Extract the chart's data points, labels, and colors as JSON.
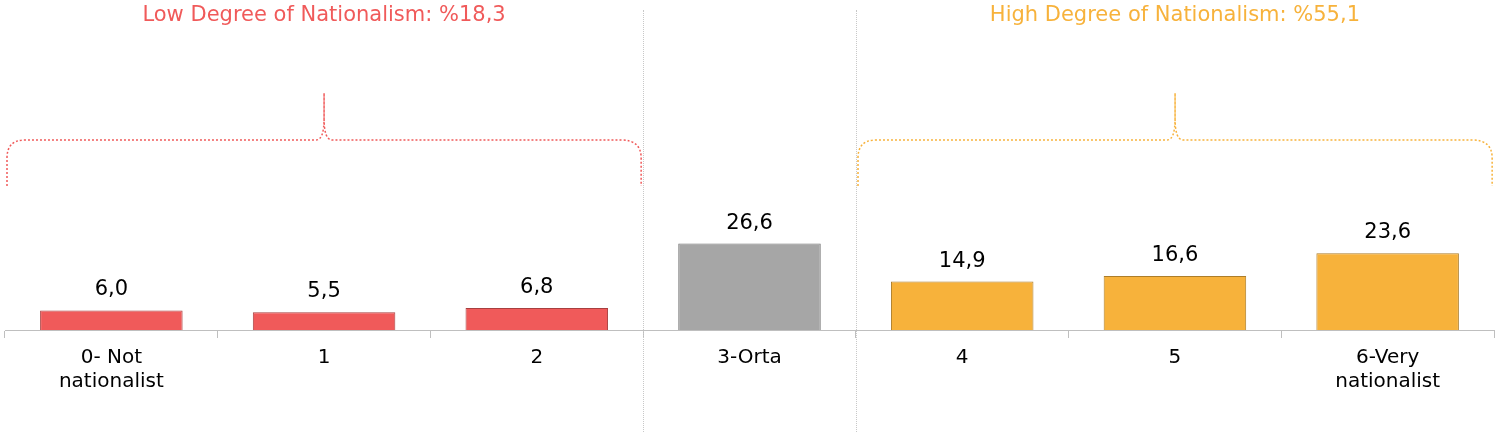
{
  "chart_data": {
    "type": "bar",
    "categories": [
      "0- Not nationalist",
      "1",
      "2",
      "3-Orta",
      "4",
      "5",
      "6-Very nationalist"
    ],
    "values": [
      6.0,
      5.5,
      6.8,
      26.6,
      14.9,
      16.6,
      23.6
    ],
    "colors": [
      "#f05a5a",
      "#f05a5a",
      "#f05a5a",
      "#a6a6a6",
      "#f7b23b",
      "#f7b23b",
      "#f7b23b"
    ],
    "data_labels": true,
    "value_labels": [
      "6,0",
      "5,5",
      "6,8",
      "26,6",
      "14,9",
      "16,6",
      "23,6"
    ],
    "annotations": [
      "Low Degree of Nationalism: %18,3",
      "High Degree of Nationalism: %55,1"
    ]
  }
}
